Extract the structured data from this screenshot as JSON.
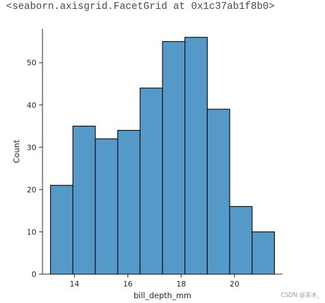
{
  "output": {
    "repr_text": "<seaborn.axisgrid.FacetGrid at 0x1c37ab1f8b0>"
  },
  "watermark": "CSDN @凌冰_",
  "chart_data": {
    "type": "bar",
    "subtype": "histogram",
    "xlabel": "bill_depth_mm",
    "ylabel": "Count",
    "xlim": [
      12.8,
      21.8
    ],
    "ylim": [
      0,
      58
    ],
    "x_ticks": [
      14,
      16,
      18,
      20
    ],
    "y_ticks": [
      0,
      10,
      20,
      30,
      40,
      50
    ],
    "bin_edges": [
      13.1,
      13.94,
      14.78,
      15.62,
      16.46,
      17.3,
      18.14,
      18.98,
      19.82,
      20.66,
      21.5
    ],
    "values": [
      21,
      35,
      32,
      34,
      44,
      55,
      56,
      39,
      16,
      10
    ],
    "bar_color": "#5499c7",
    "edge_color": "#111111",
    "grid": false,
    "spines": [
      "left",
      "bottom"
    ]
  }
}
